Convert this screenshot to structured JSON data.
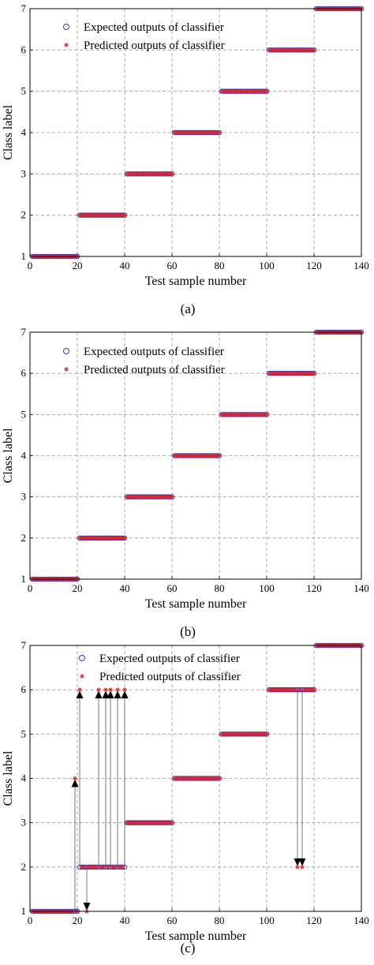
{
  "chart_data": [
    {
      "type": "scatter",
      "panel_caption": "(a)",
      "xlabel": "Test sample number",
      "ylabel": "Class label",
      "xlim": [
        0,
        140
      ],
      "ylim": [
        1,
        7
      ],
      "xticks": [
        0,
        20,
        40,
        60,
        80,
        100,
        120,
        140
      ],
      "yticks": [
        1,
        2,
        3,
        4,
        5,
        6,
        7
      ],
      "grid": true,
      "legend_position": "top-left",
      "series": [
        {
          "name": "Expected outputs of classifier",
          "marker": "circle",
          "color": "#3333cc",
          "segments": [
            {
              "x_from": 1,
              "x_to": 20,
              "y": 1
            },
            {
              "x_from": 21,
              "x_to": 40,
              "y": 2
            },
            {
              "x_from": 41,
              "x_to": 60,
              "y": 3
            },
            {
              "x_from": 61,
              "x_to": 80,
              "y": 4
            },
            {
              "x_from": 81,
              "x_to": 100,
              "y": 5
            },
            {
              "x_from": 101,
              "x_to": 120,
              "y": 6
            },
            {
              "x_from": 121,
              "x_to": 140,
              "y": 7
            }
          ]
        },
        {
          "name": "Predicted outputs of classifier",
          "marker": "asterisk",
          "color": "#e02020",
          "segments": [
            {
              "x_from": 1,
              "x_to": 20,
              "y": 1
            },
            {
              "x_from": 21,
              "x_to": 40,
              "y": 2
            },
            {
              "x_from": 41,
              "x_to": 60,
              "y": 3
            },
            {
              "x_from": 61,
              "x_to": 80,
              "y": 4
            },
            {
              "x_from": 81,
              "x_to": 100,
              "y": 5
            },
            {
              "x_from": 101,
              "x_to": 120,
              "y": 6
            },
            {
              "x_from": 121,
              "x_to": 140,
              "y": 7
            }
          ],
          "errors": []
        }
      ]
    },
    {
      "type": "scatter",
      "panel_caption": "(b)",
      "xlabel": "Test sample number",
      "ylabel": "Class label",
      "xlim": [
        0,
        140
      ],
      "ylim": [
        1,
        7
      ],
      "xticks": [
        0,
        20,
        40,
        60,
        80,
        100,
        120,
        140
      ],
      "yticks": [
        1,
        2,
        3,
        4,
        5,
        6,
        7
      ],
      "grid": true,
      "legend_position": "top-left",
      "series": [
        {
          "name": "Expected outputs of classifier",
          "marker": "circle",
          "color": "#3333cc",
          "segments": [
            {
              "x_from": 1,
              "x_to": 20,
              "y": 1
            },
            {
              "x_from": 21,
              "x_to": 40,
              "y": 2
            },
            {
              "x_from": 41,
              "x_to": 60,
              "y": 3
            },
            {
              "x_from": 61,
              "x_to": 80,
              "y": 4
            },
            {
              "x_from": 81,
              "x_to": 100,
              "y": 5
            },
            {
              "x_from": 101,
              "x_to": 120,
              "y": 6
            },
            {
              "x_from": 121,
              "x_to": 140,
              "y": 7
            }
          ]
        },
        {
          "name": "Predicted outputs of classifier",
          "marker": "asterisk",
          "color": "#e02020",
          "segments": [
            {
              "x_from": 1,
              "x_to": 20,
              "y": 1
            },
            {
              "x_from": 21,
              "x_to": 40,
              "y": 2
            },
            {
              "x_from": 41,
              "x_to": 60,
              "y": 3
            },
            {
              "x_from": 61,
              "x_to": 80,
              "y": 4
            },
            {
              "x_from": 81,
              "x_to": 100,
              "y": 5
            },
            {
              "x_from": 101,
              "x_to": 120,
              "y": 6
            },
            {
              "x_from": 121,
              "x_to": 140,
              "y": 7
            }
          ],
          "errors": []
        }
      ]
    },
    {
      "type": "scatter",
      "panel_caption": "(c)",
      "xlabel": "Test sample number",
      "ylabel": "Class label",
      "xlim": [
        0,
        140
      ],
      "ylim": [
        1,
        7
      ],
      "xticks": [
        0,
        20,
        40,
        60,
        80,
        100,
        120,
        140
      ],
      "yticks": [
        1,
        2,
        3,
        4,
        5,
        6,
        7
      ],
      "grid": true,
      "legend_position": "top-left",
      "series": [
        {
          "name": "Expected outputs of classifier",
          "marker": "circle",
          "color": "#3333cc",
          "segments": [
            {
              "x_from": 1,
              "x_to": 20,
              "y": 1
            },
            {
              "x_from": 21,
              "x_to": 40,
              "y": 2
            },
            {
              "x_from": 41,
              "x_to": 60,
              "y": 3
            },
            {
              "x_from": 61,
              "x_to": 80,
              "y": 4
            },
            {
              "x_from": 81,
              "x_to": 100,
              "y": 5
            },
            {
              "x_from": 101,
              "x_to": 120,
              "y": 6
            },
            {
              "x_from": 121,
              "x_to": 140,
              "y": 7
            }
          ]
        },
        {
          "name": "Predicted outputs of classifier",
          "marker": "asterisk",
          "color": "#e02020",
          "segments": [
            {
              "x_from": 1,
              "x_to": 20,
              "y": 1
            },
            {
              "x_from": 21,
              "x_to": 40,
              "y": 2
            },
            {
              "x_from": 41,
              "x_to": 60,
              "y": 3
            },
            {
              "x_from": 61,
              "x_to": 80,
              "y": 4
            },
            {
              "x_from": 81,
              "x_to": 100,
              "y": 5
            },
            {
              "x_from": 101,
              "x_to": 120,
              "y": 6
            },
            {
              "x_from": 121,
              "x_to": 140,
              "y": 7
            }
          ],
          "errors": [
            {
              "x": 19,
              "expected": 1,
              "predicted": 4
            },
            {
              "x": 21,
              "expected": 2,
              "predicted": 6
            },
            {
              "x": 24,
              "expected": 2,
              "predicted": 1
            },
            {
              "x": 29,
              "expected": 2,
              "predicted": 6
            },
            {
              "x": 32,
              "expected": 2,
              "predicted": 6
            },
            {
              "x": 34,
              "expected": 2,
              "predicted": 6
            },
            {
              "x": 37,
              "expected": 2,
              "predicted": 6
            },
            {
              "x": 40,
              "expected": 2,
              "predicted": 6
            },
            {
              "x": 113,
              "expected": 6,
              "predicted": 2
            },
            {
              "x": 115,
              "expected": 6,
              "predicted": 2
            }
          ]
        }
      ]
    }
  ]
}
